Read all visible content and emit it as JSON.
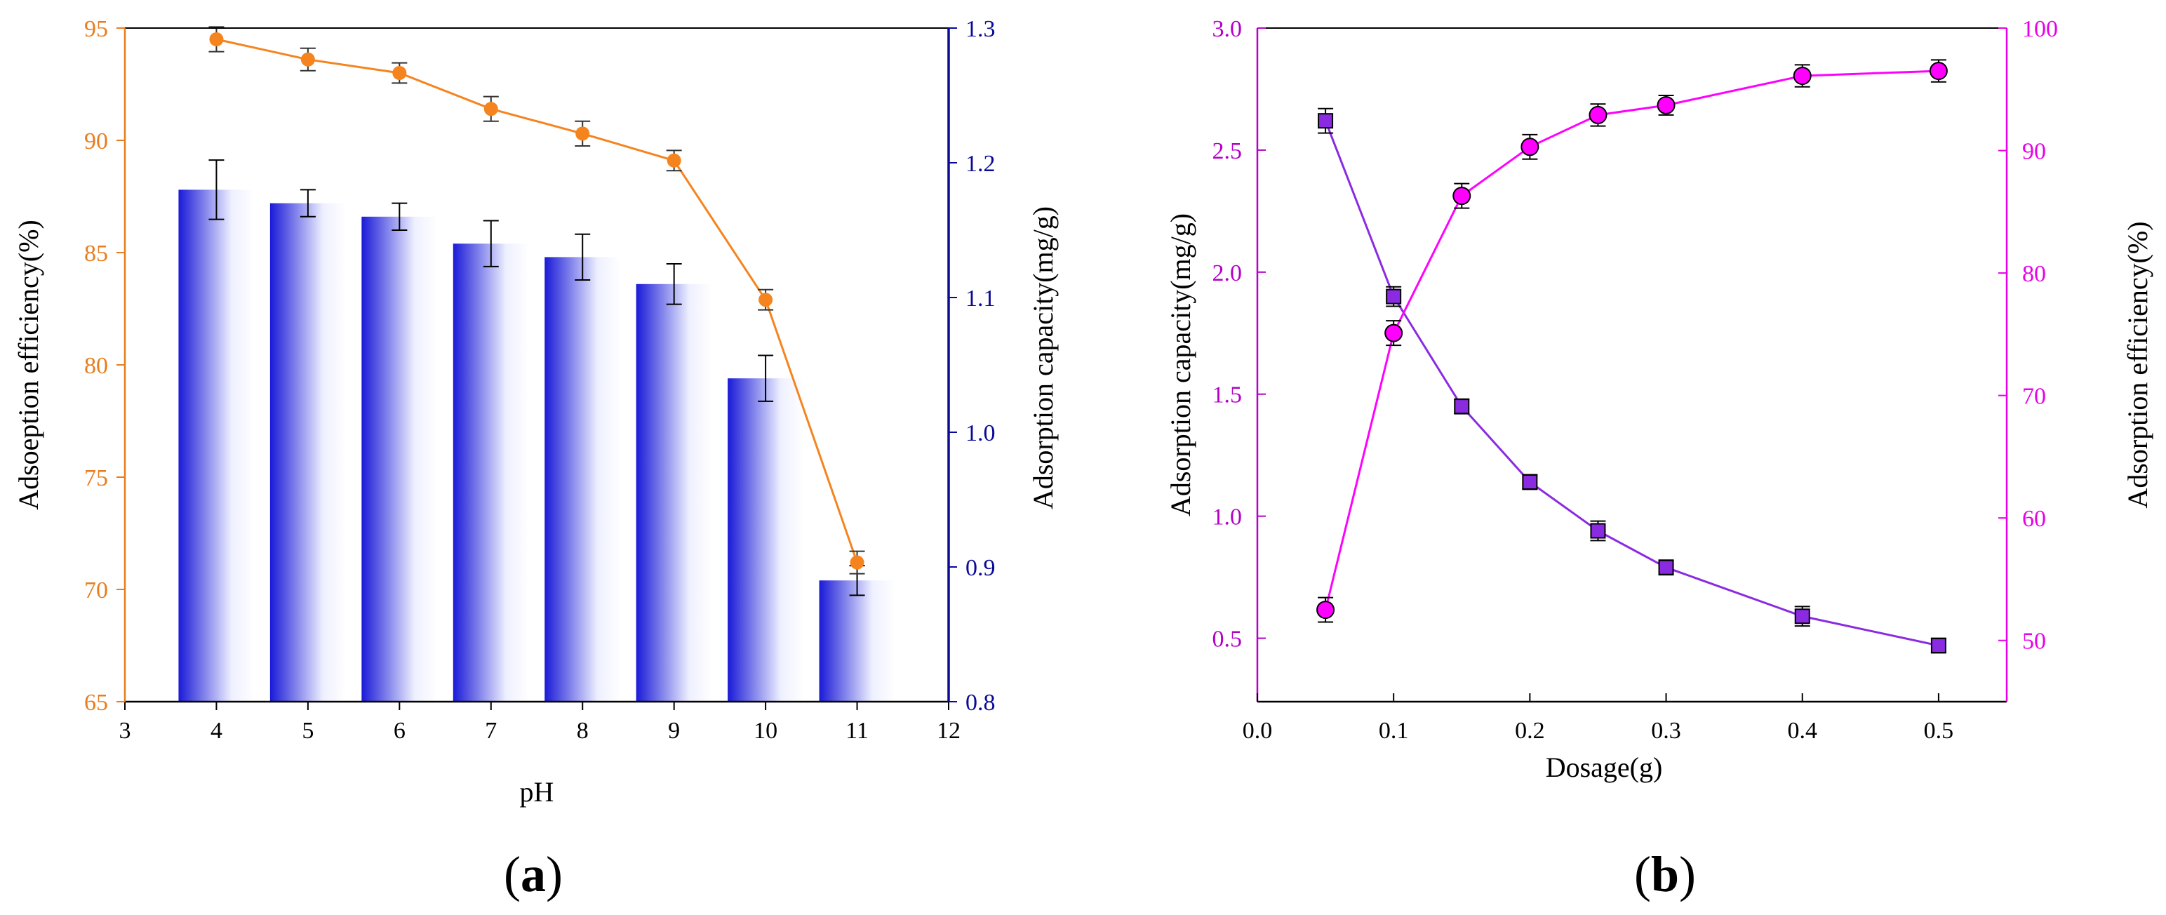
{
  "chart_data": [
    {
      "panel": "a",
      "type": "bar+line",
      "xlabel": "pH",
      "ylabel_left": "Adsoeption efficiency(%)",
      "ylabel_right": "Adsorption capacity(mg/g)",
      "xlim": [
        3,
        12
      ],
      "ylim_left": [
        65,
        95
      ],
      "ylim_right": [
        0.8,
        1.3
      ],
      "xticks": [
        3,
        4,
        5,
        6,
        7,
        8,
        9,
        10,
        11,
        12
      ],
      "yticks_left": [
        65,
        70,
        75,
        80,
        85,
        90,
        95
      ],
      "yticks_right": [
        "0.8",
        "0.9",
        "1.0",
        "1.1",
        "1.2",
        "1.3"
      ],
      "x": [
        4,
        5,
        6,
        7,
        8,
        9,
        10,
        11
      ],
      "series": [
        {
          "name": "Adsorption capacity",
          "kind": "bar",
          "axis": "right",
          "values": [
            1.18,
            1.17,
            1.16,
            1.14,
            1.13,
            1.11,
            1.04,
            0.89
          ],
          "errors": [
            0.022,
            0.01,
            0.01,
            0.017,
            0.017,
            0.015,
            0.017,
            0.011
          ]
        },
        {
          "name": "Adsorption efficiency",
          "kind": "line",
          "axis": "left",
          "values": [
            94.5,
            93.6,
            93.0,
            91.4,
            90.3,
            89.1,
            82.9,
            71.2
          ],
          "errors": [
            0.55,
            0.5,
            0.45,
            0.55,
            0.55,
            0.45,
            0.45,
            0.5
          ]
        }
      ],
      "colors": {
        "bar": "#1a1ad8",
        "line": "#f5841f",
        "right_axis": "#0a0a96",
        "left_axis": "#e87d1e"
      }
    },
    {
      "panel": "b",
      "type": "line",
      "xlabel": "Dosage(g)",
      "ylabel_left": "Adsorption capacity(mg/g)",
      "ylabel_right": "Adsorption efficiency(%)",
      "xlim": [
        0.0,
        0.55
      ],
      "ylim_left": [
        0.24,
        3.0
      ],
      "ylim_right": [
        45,
        100
      ],
      "xticks": [
        "0.0",
        "0.1",
        "0.2",
        "0.3",
        "0.4",
        "0.5"
      ],
      "yticks_left": [
        "0.5",
        "1.0",
        "1.5",
        "2.0",
        "2.5",
        "3.0"
      ],
      "yticks_right": [
        50,
        60,
        70,
        80,
        90,
        100
      ],
      "x": [
        0.05,
        0.1,
        0.15,
        0.2,
        0.25,
        0.3,
        0.4,
        0.5
      ],
      "series": [
        {
          "name": "Adsorption capacity",
          "axis": "left",
          "marker": "square",
          "values": [
            2.62,
            1.9,
            1.45,
            1.14,
            0.94,
            0.79,
            0.59,
            0.47
          ],
          "errors": [
            0.05,
            0.04,
            0.03,
            0.03,
            0.04,
            0.03,
            0.04,
            0.03
          ]
        },
        {
          "name": "Adsorption efficiency",
          "axis": "right",
          "marker": "circle",
          "values": [
            52.5,
            75.1,
            86.3,
            90.3,
            92.9,
            93.7,
            96.1,
            96.5
          ],
          "errors": [
            1.0,
            1.0,
            1.0,
            1.0,
            0.9,
            0.8,
            0.9,
            0.9
          ]
        }
      ],
      "colors": {
        "capacity": "#8a2be2",
        "efficiency": "#ff00ff",
        "left_axis": "#b400c8",
        "right_axis": "#e800e8"
      }
    }
  ],
  "labels": {
    "panel_a": "(a)",
    "panel_b": "(b)"
  }
}
